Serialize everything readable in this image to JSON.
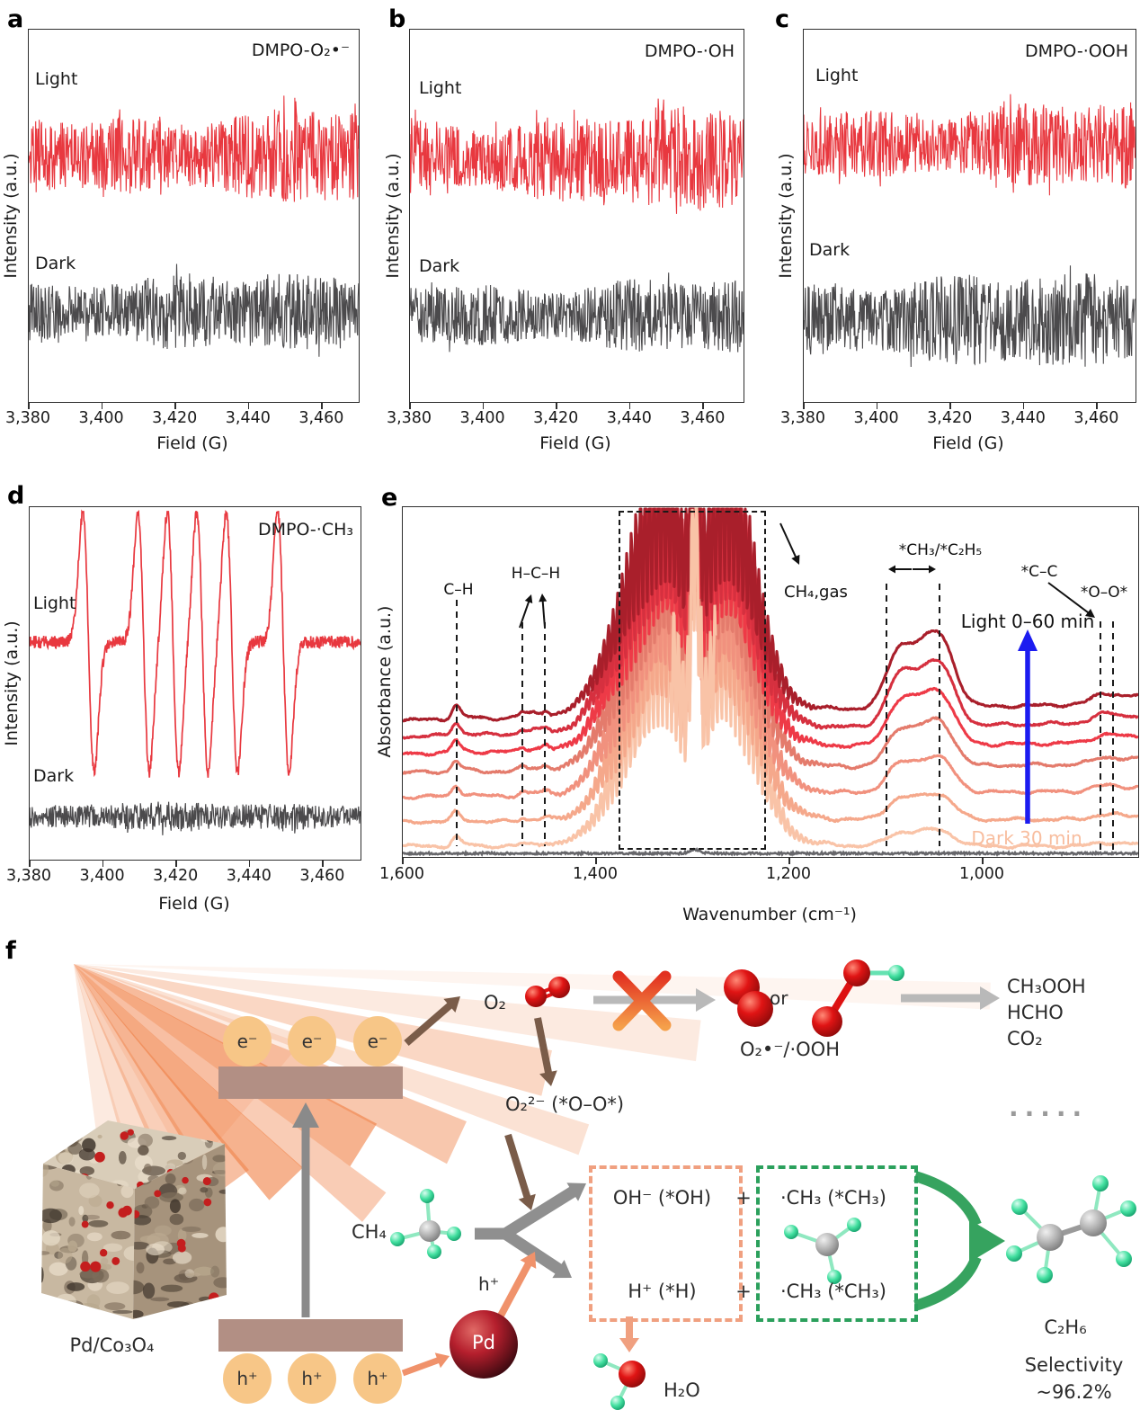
{
  "figure": {
    "letters": {
      "a": "a",
      "b": "b",
      "c": "c",
      "d": "d",
      "e": "e",
      "f": "f"
    }
  },
  "chart_data": {
    "epr_a": {
      "type": "line",
      "adduct_label": "DMPO-O₂•⁻",
      "xlabel": "Field (G)",
      "ylabel": "Intensity (a.u.)",
      "x_range_G": [
        3380,
        3470
      ],
      "xticks_G": [
        3380,
        3400,
        3420,
        3440,
        3460
      ],
      "xtick_labels": [
        "3,380",
        "3,400",
        "3,420",
        "3,440",
        "3,460"
      ],
      "series": [
        {
          "name": "Light",
          "color": "#e8383f",
          "style": "noise",
          "signal": "none detected"
        },
        {
          "name": "Dark",
          "color": "#4b4a4c",
          "style": "noise",
          "signal": "none detected"
        }
      ]
    },
    "epr_b": {
      "type": "line",
      "adduct_label": "DMPO-·OH",
      "xlabel": "Field (G)",
      "ylabel": "Intensity (a.u.)",
      "x_range_G": [
        3380,
        3470
      ],
      "xticks_G": [
        3380,
        3400,
        3420,
        3440,
        3460
      ],
      "xtick_labels": [
        "3,380",
        "3,400",
        "3,420",
        "3,440",
        "3,460"
      ],
      "series": [
        {
          "name": "Light",
          "color": "#e8383f",
          "style": "noise",
          "signal": "none detected"
        },
        {
          "name": "Dark",
          "color": "#4b4a4c",
          "style": "noise",
          "signal": "none detected"
        }
      ]
    },
    "epr_c": {
      "type": "line",
      "adduct_label": "DMPO-·OOH",
      "xlabel": "Field (G)",
      "ylabel": "Intensity (a.u.)",
      "x_range_G": [
        3380,
        3470
      ],
      "xticks_G": [
        3380,
        3400,
        3420,
        3440,
        3460
      ],
      "xtick_labels": [
        "3,380",
        "3,400",
        "3,420",
        "3,440",
        "3,460"
      ],
      "series": [
        {
          "name": "Light",
          "color": "#e8383f",
          "style": "noise",
          "signal": "none detected"
        },
        {
          "name": "Dark",
          "color": "#4b4a4c",
          "style": "noise",
          "signal": "none detected"
        }
      ]
    },
    "epr_d": {
      "type": "line",
      "adduct_label": "DMPO-·CH₃",
      "xlabel": "Field (G)",
      "ylabel": "Intensity (a.u.)",
      "x_range_G": [
        3380,
        3470
      ],
      "xticks_G": [
        3380,
        3400,
        3420,
        3440,
        3460
      ],
      "xtick_labels": [
        "3,380",
        "3,400",
        "3,420",
        "3,440",
        "3,460"
      ],
      "series": [
        {
          "name": "Light",
          "color": "#e8383f",
          "style": "sextet",
          "signal": "methyl radical sextet",
          "peaks_G": [
            3396,
            3411,
            3419,
            3427,
            3435,
            3449
          ]
        },
        {
          "name": "Dark",
          "color": "#4b4a4c",
          "style": "noise",
          "signal": "none detected"
        }
      ]
    },
    "drifts_e": {
      "type": "line",
      "xlabel": "Wavenumber (cm⁻¹)",
      "ylabel": "Absorbance (a.u.)",
      "x_range": [
        1600,
        840
      ],
      "xticks": [
        1600,
        1400,
        1200,
        1000
      ],
      "xtick_labels": [
        "1,600",
        "1,400",
        "1,200",
        "1,000"
      ],
      "series": [
        {
          "name": "Dark 30 min",
          "color": "#66666a",
          "traces": 1
        },
        {
          "name": "Light 0–60 min",
          "traces": 7,
          "colors": [
            "#f9c3a7",
            "#f5a88b",
            "#f1917e",
            "#e47b6c",
            "#ee3a47",
            "#d6303f",
            "#a91f2b"
          ]
        }
      ],
      "annotations": {
        "c_h": {
          "label": "C–H",
          "wn": 1545
        },
        "h_c_h": {
          "label": "H–C–H",
          "wn": [
            1477,
            1454
          ]
        },
        "ch4_gas": {
          "label": "CH₄,gas",
          "box_wn": [
            1372,
            1220
          ]
        },
        "ch3_c2h5": {
          "label": "*CH₃/*C₂H₅",
          "wn": [
            1090,
            1030
          ]
        },
        "c_c": {
          "label": "*C–C",
          "wn": 879
        },
        "o_o": {
          "label": "*O–O*",
          "wn": 866
        },
        "light_arrow": {
          "label": "Light 0–60 min",
          "color": "#1c1cf0"
        },
        "dark_label": {
          "label": "Dark 30 min",
          "color": "#f8bd9e"
        }
      }
    }
  },
  "panel_f": {
    "electron": "e⁻",
    "hole": "h⁺",
    "o2": "O₂",
    "or": "or",
    "superoxide": "O₂•⁻/·OOH",
    "peroxide": "O₂²⁻ (*O–O*)",
    "ch4": "CH₄",
    "h_plus": "h⁺",
    "pd": "Pd",
    "catalyst": "Pd/Co₃O₄",
    "oh_intermediate": "OH⁻ (*OH)",
    "h_intermediate": "H⁺ (*H)",
    "ch3_radical_top": "·CH₃ (*CH₃)",
    "ch3_radical_bottom": "·CH₃ (*CH₃)",
    "plus_top": "+",
    "plus_bottom": "+",
    "products": [
      "CH₃OOH",
      "HCHO",
      "CO₂"
    ],
    "ellipsis": "·····",
    "h2o": "H₂O",
    "c2h6": "C₂H₆",
    "selectivity_line1": "Selectivity",
    "selectivity_line2": "~96.2%"
  }
}
